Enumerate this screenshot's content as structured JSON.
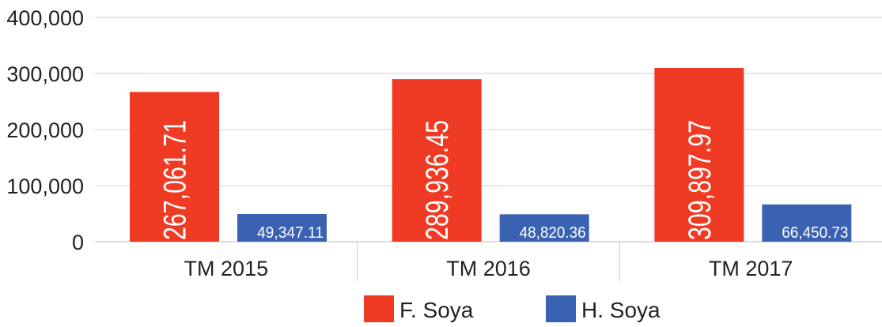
{
  "chart_data": {
    "type": "bar",
    "categories": [
      "TM 2015",
      "TM 2016",
      "TM 2017"
    ],
    "series": [
      {
        "name": "F. Soya",
        "color": "#ef3b24",
        "values": [
          267061.71,
          289936.45,
          309897.97
        ],
        "value_labels": [
          "267,061.71",
          "289,936.45",
          "309,897.97"
        ]
      },
      {
        "name": "H. Soya",
        "color": "#3a62b3",
        "values": [
          49347.11,
          48820.36,
          66450.73
        ],
        "value_labels": [
          "49,347.11",
          "48,820.36",
          "66,450.73"
        ]
      }
    ],
    "ylim": [
      0,
      400000
    ],
    "yticks": [
      0,
      {
        "value": 100000,
        "label": "100,000"
      },
      {
        "value": 200000,
        "label": "200,000"
      },
      {
        "value": 300000,
        "label": "300,000"
      },
      {
        "value": 400000,
        "label": "400,000"
      }
    ],
    "grid": true,
    "legend": "bottom"
  }
}
